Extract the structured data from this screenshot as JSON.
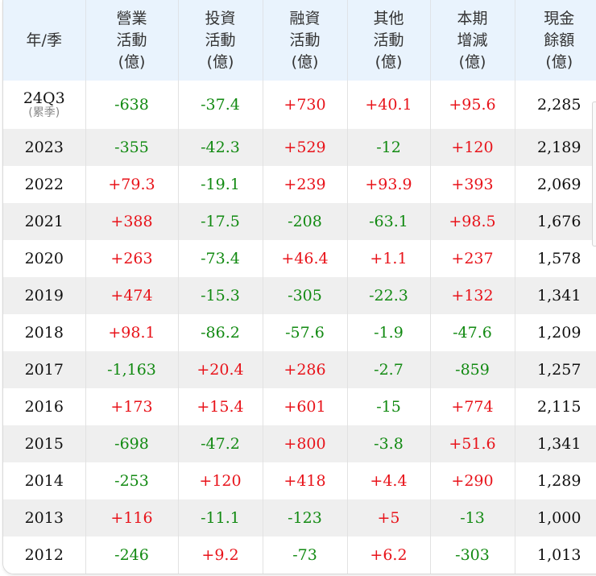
{
  "table": {
    "columns": [
      {
        "key": "period",
        "lines": [
          "年/季"
        ]
      },
      {
        "key": "operating",
        "lines": [
          "營業",
          "活動",
          "(億)"
        ]
      },
      {
        "key": "investing",
        "lines": [
          "投資",
          "活動",
          "(億)"
        ]
      },
      {
        "key": "financing",
        "lines": [
          "融資",
          "活動",
          "(億)"
        ]
      },
      {
        "key": "other",
        "lines": [
          "其他",
          "活動",
          "(億)"
        ]
      },
      {
        "key": "net_change",
        "lines": [
          "本期",
          "增減",
          "(億)"
        ]
      },
      {
        "key": "cash_balance",
        "lines": [
          "現金",
          "餘額",
          "(億)"
        ]
      }
    ],
    "rows": [
      {
        "period": "24Q3",
        "period_note": "(累季)",
        "cells": [
          "-638",
          "-37.4",
          "+730",
          "+40.1",
          "+95.6",
          "2,285"
        ]
      },
      {
        "period": "2023",
        "cells": [
          "-355",
          "-42.3",
          "+529",
          "-12",
          "+120",
          "2,189"
        ]
      },
      {
        "period": "2022",
        "cells": [
          "+79.3",
          "-19.1",
          "+239",
          "+93.9",
          "+393",
          "2,069"
        ]
      },
      {
        "period": "2021",
        "cells": [
          "+388",
          "-17.5",
          "-208",
          "-63.1",
          "+98.5",
          "1,676"
        ]
      },
      {
        "period": "2020",
        "cells": [
          "+263",
          "-73.4",
          "+46.4",
          "+1.1",
          "+237",
          "1,578"
        ]
      },
      {
        "period": "2019",
        "cells": [
          "+474",
          "-15.3",
          "-305",
          "-22.3",
          "+132",
          "1,341"
        ]
      },
      {
        "period": "2018",
        "cells": [
          "+98.1",
          "-86.2",
          "-57.6",
          "-1.9",
          "-47.6",
          "1,209"
        ]
      },
      {
        "period": "2017",
        "cells": [
          "-1,163",
          "+20.4",
          "+286",
          "-2.7",
          "-859",
          "1,257"
        ]
      },
      {
        "period": "2016",
        "cells": [
          "+173",
          "+15.4",
          "+601",
          "-15",
          "+774",
          "2,115"
        ]
      },
      {
        "period": "2015",
        "cells": [
          "-698",
          "-47.2",
          "+800",
          "-3.8",
          "+51.6",
          "1,341"
        ]
      },
      {
        "period": "2014",
        "cells": [
          "-253",
          "+120",
          "+418",
          "+4.4",
          "+290",
          "1,289"
        ]
      },
      {
        "period": "2013",
        "cells": [
          "+116",
          "-11.1",
          "-123",
          "+5",
          "-13",
          "1,000"
        ]
      },
      {
        "period": "2012",
        "cells": [
          "-246",
          "+9.2",
          "-73",
          "+6.2",
          "-303",
          "1,013"
        ]
      }
    ]
  },
  "colors": {
    "positive": "#e8131a",
    "negative": "#128a12",
    "neutral": "#111111",
    "header_bg": "#e9f3fd",
    "stripe_bg": "#efefef"
  }
}
